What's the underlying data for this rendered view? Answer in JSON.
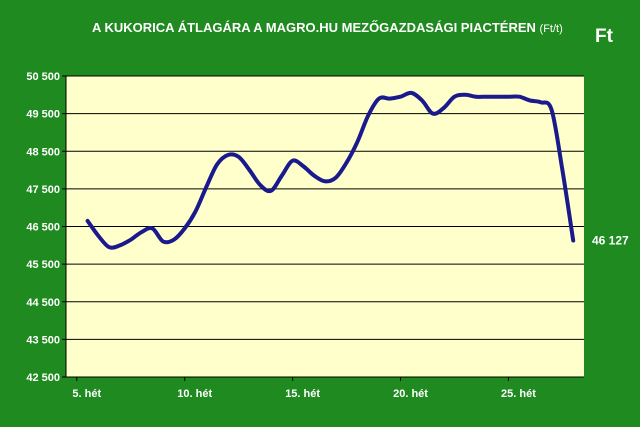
{
  "header": {
    "title": "A KUKORICA ÁTLAGÁRA A MAGRO.HU MEZŐGAZDASÁGI PIACTÉREN",
    "title_unit": "(Ft/t)",
    "unit_label": "Ft"
  },
  "chart_data": {
    "type": "line",
    "title": "A KUKORICA ÁTLAGÁRA A MAGRO.HU MEZŐGAZDASÁGI PIACTÉREN (Ft/t)",
    "ylabel": "Ft",
    "ylim": [
      42500,
      50500
    ],
    "yticks": [
      42500,
      43500,
      44500,
      45500,
      46500,
      47500,
      48500,
      49500,
      50500
    ],
    "ytick_labels": [
      "42 500",
      "43 500",
      "44 500",
      "45 500",
      "46 500",
      "47 500",
      "48 500",
      "49 500",
      "50 500"
    ],
    "xlim": [
      4.5,
      28.5
    ],
    "xticks": [
      5,
      10,
      15,
      20,
      25
    ],
    "xtick_labels": [
      "5. hét",
      "10. hét",
      "15. hét",
      "20. hét",
      "25. hét"
    ],
    "grid": true,
    "series": [
      {
        "color": "#1a1a8c",
        "x": [
          5.5,
          6,
          6.5,
          7,
          7.5,
          8,
          8.5,
          9,
          9.5,
          10,
          10.5,
          11,
          11.5,
          12,
          12.5,
          13,
          13.5,
          14,
          14.5,
          15,
          15.5,
          16,
          16.5,
          17,
          17.5,
          18,
          18.5,
          19,
          19.5,
          20,
          20.5,
          21,
          21.5,
          22,
          22.5,
          23,
          23.5,
          24,
          24.5,
          25,
          25.5,
          26,
          26.5,
          27,
          27.5,
          28
        ],
        "y": [
          46650,
          46250,
          45950,
          46000,
          46150,
          46350,
          46450,
          46100,
          46150,
          46450,
          46900,
          47550,
          48150,
          48400,
          48350,
          48000,
          47600,
          47450,
          47850,
          48250,
          48100,
          47850,
          47700,
          47800,
          48200,
          48750,
          49450,
          49900,
          49900,
          49950,
          50050,
          49850,
          49500,
          49650,
          49950,
          50000,
          49950,
          49950,
          49950,
          49950,
          49950,
          49850,
          49800,
          49600,
          48000,
          46127
        ]
      }
    ],
    "end_label": "46 127",
    "colors": {
      "background": "#1f8a1f",
      "plot_area": "#ffffcc",
      "line": "#1a1a8c",
      "text": "#ffffff"
    }
  }
}
